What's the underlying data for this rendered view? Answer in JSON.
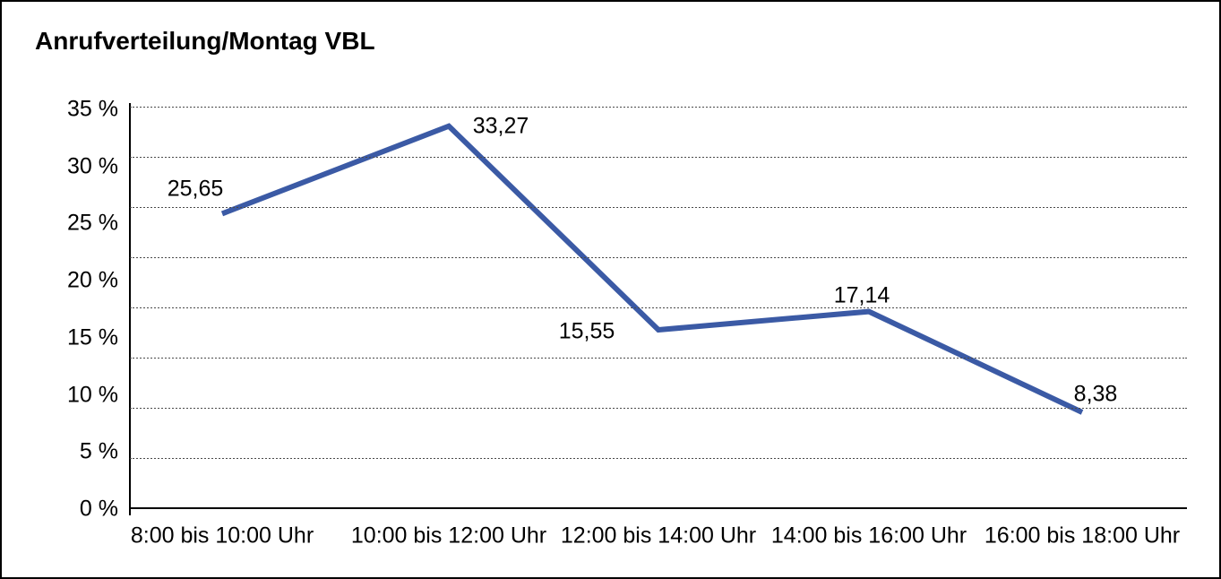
{
  "page": {
    "background_color": "#ffffff",
    "border_color": "#000000"
  },
  "chart": {
    "title": "Anrufverteilung/Montag VBL"
  },
  "chart_data": {
    "type": "line",
    "title": "Anrufverteilung/Montag VBL",
    "categories": [
      "8:00 bis 10:00 Uhr",
      "10:00 bis 12:00 Uhr",
      "12:00 bis 14:00 Uhr",
      "14:00 bis 16:00 Uhr",
      "16:00 bis 18:00 Uhr"
    ],
    "series": [
      {
        "values": [
          25.65,
          33.27,
          15.55,
          17.14,
          8.38
        ],
        "point_labels": [
          "25,65",
          "33,27",
          "15,55",
          "17,14",
          "8,38"
        ],
        "color": "#3b5aa5"
      }
    ],
    "y_tick_labels": [
      "35 %",
      "30 %",
      "25 %",
      "20 %",
      "15 %",
      "10 %",
      "5 %",
      "0 %"
    ],
    "ylim": [
      0,
      35
    ],
    "xlabel": "",
    "ylabel": "",
    "grid": "horizontal-dotted",
    "legend": "none"
  }
}
